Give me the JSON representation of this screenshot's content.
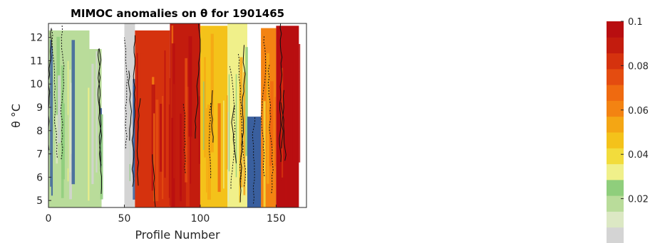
{
  "chart_data": {
    "type": "heatmap",
    "title": "MIMOC anomalies on θ  for 1901465",
    "xlabel": "Profile Number",
    "ylabel": "θ °C",
    "xlim": [
      0,
      170
    ],
    "ylim": [
      4.7,
      12.6
    ],
    "xticks": [
      "0",
      "50",
      "100",
      "150"
    ],
    "yticks": [
      "5",
      "6",
      "7",
      "8",
      "9",
      "10",
      "11",
      "12"
    ],
    "colorbar": {
      "ticks": [
        "0.02",
        "0.04",
        "0.06",
        "0.08",
        "0.1"
      ],
      "range": [
        0,
        0.1
      ],
      "colors": [
        "#d4d4d4",
        "#dce8c4",
        "#b9dc9a",
        "#8fce7c",
        "#f0f08a",
        "#f2dc3c",
        "#f4c21a",
        "#f4a614",
        "#f38312",
        "#ef6a10",
        "#e44c10",
        "#d5320e",
        "#c31c0e",
        "#b80e10"
      ]
    },
    "blocks": [
      {
        "x0": 0,
        "x1": 27,
        "top": 12.3,
        "anomaly": 0.015
      },
      {
        "x0": 27,
        "x1": 35,
        "top": 11.5,
        "anomaly": 0.02
      },
      {
        "x0": 35,
        "x1": 50,
        "top": 4.7,
        "anomaly": null
      },
      {
        "x0": 50,
        "x1": 57,
        "top": 12.6,
        "anomaly": 0.005
      },
      {
        "x0": 57,
        "x1": 80,
        "top": 12.3,
        "anomaly": 0.08
      },
      {
        "x0": 80,
        "x1": 100,
        "top": 12.6,
        "anomaly": 0.09
      },
      {
        "x0": 100,
        "x1": 118,
        "top": 12.5,
        "anomaly": 0.045
      },
      {
        "x0": 118,
        "x1": 131,
        "top": 12.6,
        "anomaly": 0.035
      },
      {
        "x0": 131,
        "x1": 140,
        "top": 8.6,
        "anomaly": -0.02
      },
      {
        "x0": 140,
        "x1": 150,
        "top": 12.4,
        "anomaly": 0.06
      },
      {
        "x0": 150,
        "x1": 165,
        "top": 12.5,
        "anomaly": 0.1
      },
      {
        "x0": 165,
        "x1": 170,
        "top": 4.7,
        "anomaly": null
      }
    ]
  }
}
